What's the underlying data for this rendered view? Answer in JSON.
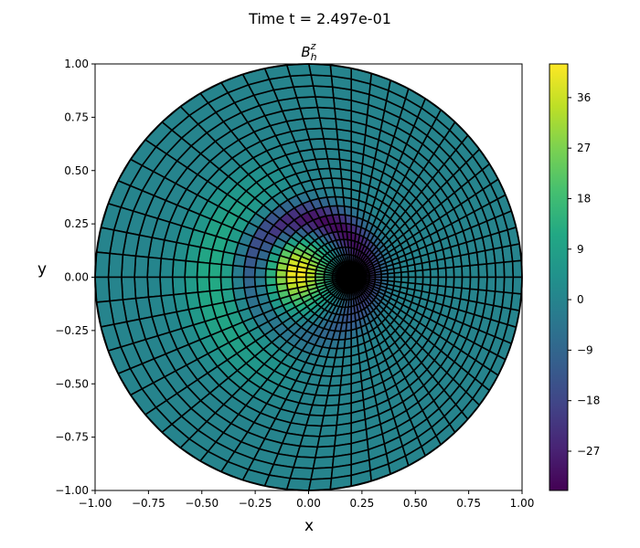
{
  "figure": {
    "suptitle": "Time t =  2.497e-01"
  },
  "chart_data": {
    "type": "heatmap",
    "title_base": "B",
    "title_sub": "h",
    "title_sup": "z",
    "xlabel": "x",
    "ylabel": "y",
    "xlim": [
      -1.0,
      1.0
    ],
    "ylim": [
      -1.0,
      1.0
    ],
    "xticks": [
      "−1.00",
      "−0.75",
      "−0.50",
      "−0.25",
      "0.00",
      "0.25",
      "0.50",
      "0.75",
      "1.00"
    ],
    "yticks": [
      "−1.00",
      "−0.75",
      "−0.50",
      "−0.25",
      "0.00",
      "0.25",
      "0.50",
      "0.75",
      "1.00"
    ],
    "xtick_values": [
      -1.0,
      -0.75,
      -0.5,
      -0.25,
      0.0,
      0.25,
      0.5,
      0.75,
      1.0
    ],
    "ytick_values": [
      -1.0,
      -0.75,
      -0.5,
      -0.25,
      0.0,
      0.25,
      0.5,
      0.75,
      1.0
    ],
    "domain": "unit disk",
    "mesh": {
      "type": "polar-like grid",
      "center": [
        0.2,
        0.0
      ],
      "radial_divisions": 24,
      "angular_divisions": 64,
      "grid_lines": true,
      "line_color": "#000000"
    },
    "field": {
      "background_value": 0,
      "features": [
        {
          "kind": "positive lobe",
          "center": [
            -0.05,
            0.02
          ],
          "peak": 42
        },
        {
          "kind": "negative ring",
          "center": [
            0.0,
            0.0
          ],
          "peak": -33
        },
        {
          "kind": "positive halo",
          "center": [
            -0.3,
            0.0
          ],
          "peak": 12
        }
      ]
    },
    "colorbar": {
      "colormap": "viridis",
      "vmin": -34,
      "vmax": 42,
      "ticks": [
        "−27",
        "−18",
        "−9",
        "0",
        "9",
        "18",
        "27",
        "36"
      ],
      "tick_values": [
        -27,
        -18,
        -9,
        0,
        9,
        18,
        27,
        36
      ]
    }
  }
}
